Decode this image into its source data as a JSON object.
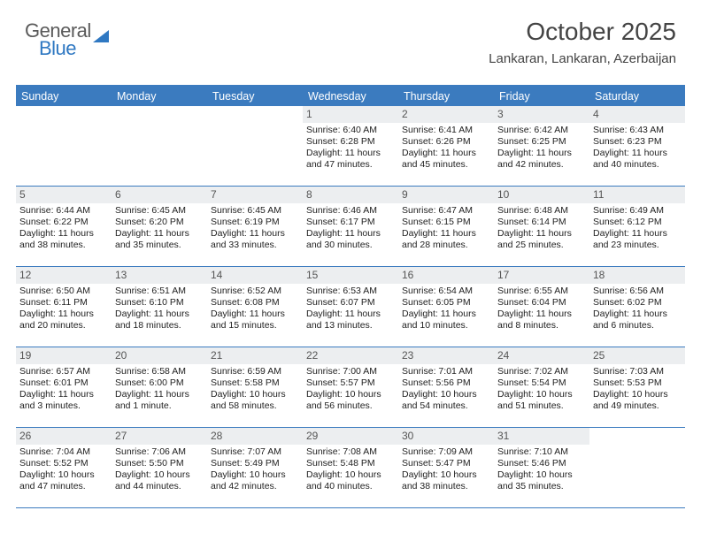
{
  "brand": {
    "part1": "General",
    "part2": "Blue"
  },
  "title": "October 2025",
  "location": "Lankaran, Lankaran, Azerbaijan",
  "colors": {
    "header_bg": "#3b7bbf",
    "daynum_bg": "#eceef0",
    "text": "#222222",
    "title_color": "#444444",
    "brand_gray": "#5a5a5a",
    "brand_blue": "#2f78c2"
  },
  "dayNames": [
    "Sunday",
    "Monday",
    "Tuesday",
    "Wednesday",
    "Thursday",
    "Friday",
    "Saturday"
  ],
  "weeks": [
    [
      {
        "n": "",
        "sr": "",
        "ss": "",
        "dl": ""
      },
      {
        "n": "",
        "sr": "",
        "ss": "",
        "dl": ""
      },
      {
        "n": "",
        "sr": "",
        "ss": "",
        "dl": ""
      },
      {
        "n": "1",
        "sr": "Sunrise: 6:40 AM",
        "ss": "Sunset: 6:28 PM",
        "dl": "Daylight: 11 hours and 47 minutes."
      },
      {
        "n": "2",
        "sr": "Sunrise: 6:41 AM",
        "ss": "Sunset: 6:26 PM",
        "dl": "Daylight: 11 hours and 45 minutes."
      },
      {
        "n": "3",
        "sr": "Sunrise: 6:42 AM",
        "ss": "Sunset: 6:25 PM",
        "dl": "Daylight: 11 hours and 42 minutes."
      },
      {
        "n": "4",
        "sr": "Sunrise: 6:43 AM",
        "ss": "Sunset: 6:23 PM",
        "dl": "Daylight: 11 hours and 40 minutes."
      }
    ],
    [
      {
        "n": "5",
        "sr": "Sunrise: 6:44 AM",
        "ss": "Sunset: 6:22 PM",
        "dl": "Daylight: 11 hours and 38 minutes."
      },
      {
        "n": "6",
        "sr": "Sunrise: 6:45 AM",
        "ss": "Sunset: 6:20 PM",
        "dl": "Daylight: 11 hours and 35 minutes."
      },
      {
        "n": "7",
        "sr": "Sunrise: 6:45 AM",
        "ss": "Sunset: 6:19 PM",
        "dl": "Daylight: 11 hours and 33 minutes."
      },
      {
        "n": "8",
        "sr": "Sunrise: 6:46 AM",
        "ss": "Sunset: 6:17 PM",
        "dl": "Daylight: 11 hours and 30 minutes."
      },
      {
        "n": "9",
        "sr": "Sunrise: 6:47 AM",
        "ss": "Sunset: 6:15 PM",
        "dl": "Daylight: 11 hours and 28 minutes."
      },
      {
        "n": "10",
        "sr": "Sunrise: 6:48 AM",
        "ss": "Sunset: 6:14 PM",
        "dl": "Daylight: 11 hours and 25 minutes."
      },
      {
        "n": "11",
        "sr": "Sunrise: 6:49 AM",
        "ss": "Sunset: 6:12 PM",
        "dl": "Daylight: 11 hours and 23 minutes."
      }
    ],
    [
      {
        "n": "12",
        "sr": "Sunrise: 6:50 AM",
        "ss": "Sunset: 6:11 PM",
        "dl": "Daylight: 11 hours and 20 minutes."
      },
      {
        "n": "13",
        "sr": "Sunrise: 6:51 AM",
        "ss": "Sunset: 6:10 PM",
        "dl": "Daylight: 11 hours and 18 minutes."
      },
      {
        "n": "14",
        "sr": "Sunrise: 6:52 AM",
        "ss": "Sunset: 6:08 PM",
        "dl": "Daylight: 11 hours and 15 minutes."
      },
      {
        "n": "15",
        "sr": "Sunrise: 6:53 AM",
        "ss": "Sunset: 6:07 PM",
        "dl": "Daylight: 11 hours and 13 minutes."
      },
      {
        "n": "16",
        "sr": "Sunrise: 6:54 AM",
        "ss": "Sunset: 6:05 PM",
        "dl": "Daylight: 11 hours and 10 minutes."
      },
      {
        "n": "17",
        "sr": "Sunrise: 6:55 AM",
        "ss": "Sunset: 6:04 PM",
        "dl": "Daylight: 11 hours and 8 minutes."
      },
      {
        "n": "18",
        "sr": "Sunrise: 6:56 AM",
        "ss": "Sunset: 6:02 PM",
        "dl": "Daylight: 11 hours and 6 minutes."
      }
    ],
    [
      {
        "n": "19",
        "sr": "Sunrise: 6:57 AM",
        "ss": "Sunset: 6:01 PM",
        "dl": "Daylight: 11 hours and 3 minutes."
      },
      {
        "n": "20",
        "sr": "Sunrise: 6:58 AM",
        "ss": "Sunset: 6:00 PM",
        "dl": "Daylight: 11 hours and 1 minute."
      },
      {
        "n": "21",
        "sr": "Sunrise: 6:59 AM",
        "ss": "Sunset: 5:58 PM",
        "dl": "Daylight: 10 hours and 58 minutes."
      },
      {
        "n": "22",
        "sr": "Sunrise: 7:00 AM",
        "ss": "Sunset: 5:57 PM",
        "dl": "Daylight: 10 hours and 56 minutes."
      },
      {
        "n": "23",
        "sr": "Sunrise: 7:01 AM",
        "ss": "Sunset: 5:56 PM",
        "dl": "Daylight: 10 hours and 54 minutes."
      },
      {
        "n": "24",
        "sr": "Sunrise: 7:02 AM",
        "ss": "Sunset: 5:54 PM",
        "dl": "Daylight: 10 hours and 51 minutes."
      },
      {
        "n": "25",
        "sr": "Sunrise: 7:03 AM",
        "ss": "Sunset: 5:53 PM",
        "dl": "Daylight: 10 hours and 49 minutes."
      }
    ],
    [
      {
        "n": "26",
        "sr": "Sunrise: 7:04 AM",
        "ss": "Sunset: 5:52 PM",
        "dl": "Daylight: 10 hours and 47 minutes."
      },
      {
        "n": "27",
        "sr": "Sunrise: 7:06 AM",
        "ss": "Sunset: 5:50 PM",
        "dl": "Daylight: 10 hours and 44 minutes."
      },
      {
        "n": "28",
        "sr": "Sunrise: 7:07 AM",
        "ss": "Sunset: 5:49 PM",
        "dl": "Daylight: 10 hours and 42 minutes."
      },
      {
        "n": "29",
        "sr": "Sunrise: 7:08 AM",
        "ss": "Sunset: 5:48 PM",
        "dl": "Daylight: 10 hours and 40 minutes."
      },
      {
        "n": "30",
        "sr": "Sunrise: 7:09 AM",
        "ss": "Sunset: 5:47 PM",
        "dl": "Daylight: 10 hours and 38 minutes."
      },
      {
        "n": "31",
        "sr": "Sunrise: 7:10 AM",
        "ss": "Sunset: 5:46 PM",
        "dl": "Daylight: 10 hours and 35 minutes."
      },
      {
        "n": "",
        "sr": "",
        "ss": "",
        "dl": ""
      }
    ]
  ]
}
